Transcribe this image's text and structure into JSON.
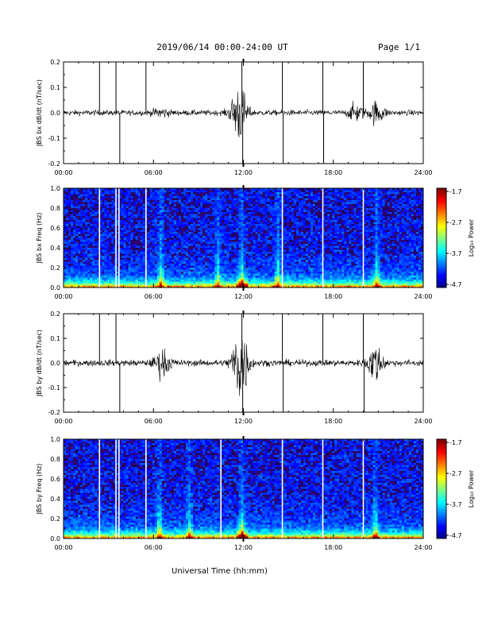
{
  "header": {
    "title": "2019/06/14  00:00-24:00 UT",
    "page": "Page 1/1"
  },
  "xlabel": "Universal Time (hh:mm)",
  "x_ticks": [
    "00:00",
    "06:00",
    "12:00",
    "18:00",
    "24:00"
  ],
  "colorbar": {
    "label": "Log₁₀ Power",
    "ticks": [
      "-1.7",
      "-2.7",
      "-3.7",
      "-4.7"
    ],
    "range": [
      -4.7,
      -1.7
    ]
  },
  "chart_data": [
    {
      "type": "line",
      "title": "",
      "ylabel": "JBS bx dB/dt (nT/sec)",
      "xlim": [
        0,
        24
      ],
      "ylim": [
        -0.2,
        0.2
      ],
      "y_ticks": [
        "0.2",
        "0.1",
        "0.0",
        "-0.1",
        "-0.2"
      ],
      "background_amplitude": 0.01,
      "spikes_up": [
        2.4,
        3.5,
        5.5,
        11.9,
        14.6,
        17.3,
        20.0
      ],
      "spikes_down": [
        3.7,
        11.9,
        14.6,
        17.3
      ],
      "bursts": [
        {
          "center": 6.5,
          "amp": 0.015
        },
        {
          "center": 11.7,
          "amp": 0.11
        },
        {
          "center": 19.5,
          "amp": 0.03
        },
        {
          "center": 20.9,
          "amp": 0.04
        }
      ]
    },
    {
      "type": "heatmap",
      "ylabel": "JBS bx Freq (Hz)",
      "xlim": [
        0,
        24
      ],
      "ylim": [
        0.0,
        1.0
      ],
      "y_ticks": [
        "1.0",
        "0.8",
        "0.6",
        "0.4",
        "0.2",
        "0.0"
      ],
      "gaps": [
        2.4,
        3.5,
        3.7,
        5.5,
        14.6,
        17.3,
        20.0
      ],
      "enhanced_columns": [
        6.5,
        10.3,
        11.9,
        14.3,
        20.9
      ],
      "zlim": [
        -4.7,
        -1.7
      ]
    },
    {
      "type": "line",
      "ylabel": "JBS by dB/dt (nT/sec)",
      "xlim": [
        0,
        24
      ],
      "ylim": [
        -0.2,
        0.2
      ],
      "y_ticks": [
        "0.2",
        "0.1",
        "0.0",
        "-0.1",
        "-0.2"
      ],
      "background_amplitude": 0.012,
      "spikes_up": [
        2.4,
        3.5,
        11.9,
        14.6,
        17.3,
        20.0
      ],
      "spikes_down": [
        3.7,
        11.9,
        14.6,
        20.0
      ],
      "bursts": [
        {
          "center": 6.6,
          "amp": 0.05
        },
        {
          "center": 11.8,
          "amp": 0.16
        },
        {
          "center": 20.8,
          "amp": 0.07
        }
      ]
    },
    {
      "type": "heatmap",
      "ylabel": "JBS by Freq (Hz)",
      "xlim": [
        0,
        24
      ],
      "ylim": [
        0.0,
        1.0
      ],
      "y_ticks": [
        "1.0",
        "0.8",
        "0.6",
        "0.4",
        "0.2",
        "0.0"
      ],
      "gaps": [
        2.4,
        3.5,
        3.7,
        5.5,
        10.5,
        14.6,
        17.3,
        20.0
      ],
      "enhanced_columns": [
        6.4,
        8.4,
        11.9,
        20.8
      ],
      "zlim": [
        -4.7,
        -1.7
      ]
    }
  ]
}
